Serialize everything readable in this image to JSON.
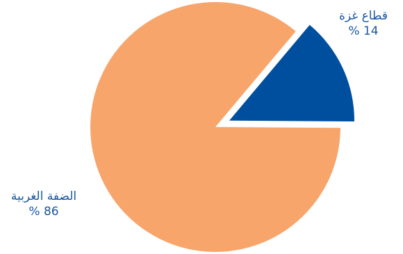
{
  "chart_data": {
    "type": "pie",
    "categories": [
      "قطاع غزة",
      "الضفة الغربية"
    ],
    "values": [
      14,
      86
    ],
    "value_labels": [
      "% 14",
      "% 86"
    ],
    "colors": [
      "#004f9e",
      "#f7a56b"
    ],
    "exploded": [
      true,
      false
    ],
    "start_angle_deg": -50,
    "direction": "clockwise",
    "label_color": "#1a57a0",
    "legend": "none",
    "title": ""
  }
}
